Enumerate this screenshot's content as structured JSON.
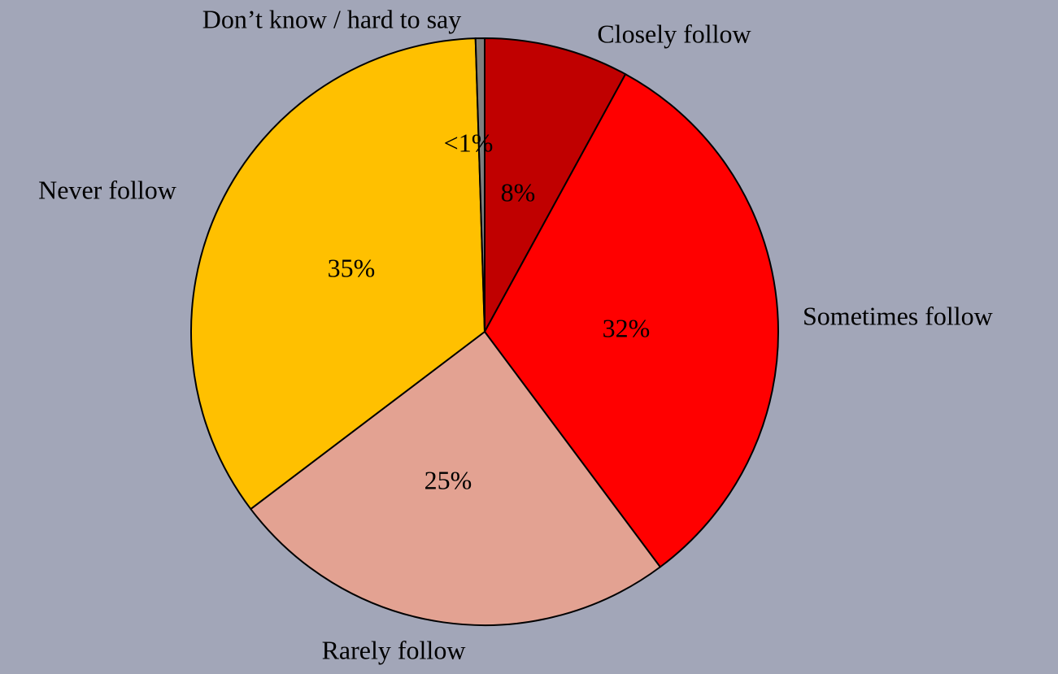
{
  "chart_data": {
    "type": "pie",
    "categories": [
      "Closely follow",
      "Sometimes follow",
      "Rarely follow",
      "Never follow",
      "Don’t know / hard to say"
    ],
    "values": [
      8,
      32,
      25,
      35,
      0.5
    ],
    "value_labels": [
      "8%",
      "32%",
      "25%",
      "35%",
      "<1%"
    ],
    "colors": [
      "#c00000",
      "#ff0000",
      "#e3a292",
      "#ffc000",
      "#7f7f7f"
    ]
  }
}
